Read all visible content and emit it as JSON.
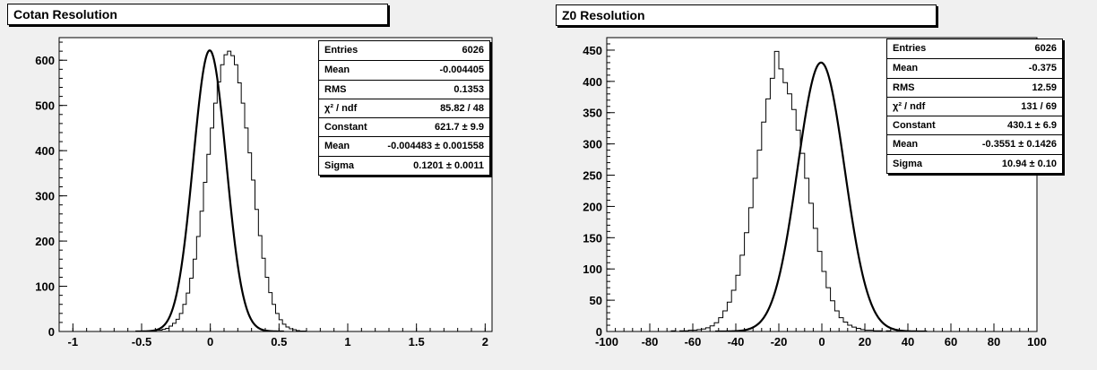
{
  "chart_data": [
    {
      "type": "histogram",
      "title": "Cotan Resolution",
      "xlim": [
        -1.1,
        2.05
      ],
      "ylim": [
        0,
        650
      ],
      "xticks": [
        -1,
        -0.5,
        0,
        0.5,
        1,
        1.5,
        2
      ],
      "xtick_labels": [
        "-1",
        "-0.5",
        "0",
        "0.5",
        "1",
        "1.5",
        "2"
      ],
      "yticks": [
        0,
        100,
        200,
        300,
        400,
        500,
        600
      ],
      "ytick_labels": [
        "0",
        "100",
        "200",
        "300",
        "400",
        "500",
        "600"
      ],
      "grid": false,
      "legend_position": "top-right",
      "histogram": {
        "bin_edges_start": -0.5,
        "bin_width": 0.025,
        "counts": [
          0,
          1,
          1,
          2,
          3,
          3,
          5,
          7,
          12,
          18,
          27,
          40,
          60,
          85,
          118,
          160,
          210,
          266,
          330,
          392,
          450,
          505,
          552,
          590,
          612,
          620,
          610,
          590,
          550,
          505,
          450,
          395,
          335,
          270,
          212,
          162,
          120,
          86,
          60,
          40,
          26,
          16,
          10,
          6,
          4,
          2,
          1,
          1,
          0,
          0
        ]
      },
      "fit": {
        "type": "gaus",
        "constant": 621.7,
        "mean": -0.004483,
        "sigma": 0.1201
      },
      "stats": [
        {
          "label": "Entries",
          "value": "6026"
        },
        {
          "label": "Mean",
          "value": "-0.004405"
        },
        {
          "label": "RMS",
          "value": "0.1353"
        },
        {
          "label": "χ² / ndf",
          "value": "85.82 / 48"
        },
        {
          "label": "Constant",
          "value": "621.7 ± 9.9"
        },
        {
          "label": "Mean",
          "value": "-0.004483 ± 0.001558"
        },
        {
          "label": "Sigma",
          "value": "0.1201 ± 0.0011"
        }
      ]
    },
    {
      "type": "histogram",
      "title": "Z0 Resolution",
      "xlim": [
        -100,
        100
      ],
      "ylim": [
        0,
        470
      ],
      "xticks": [
        -100,
        -80,
        -60,
        -40,
        -20,
        0,
        20,
        40,
        60,
        80,
        100
      ],
      "xtick_labels": [
        "-100",
        "-80",
        "-60",
        "-40",
        "-20",
        "0",
        "20",
        "40",
        "60",
        "80",
        "100"
      ],
      "yticks": [
        0,
        50,
        100,
        150,
        200,
        250,
        300,
        350,
        400,
        450
      ],
      "ytick_labels": [
        "0",
        "50",
        "100",
        "150",
        "200",
        "250",
        "300",
        "350",
        "400",
        "450"
      ],
      "grid": false,
      "legend_position": "top-right",
      "histogram": {
        "bin_edges_start": -100,
        "bin_width": 2,
        "counts": [
          0,
          0,
          0,
          0,
          0,
          0,
          0,
          0,
          0,
          0,
          0,
          0,
          0,
          0,
          0,
          1,
          0,
          1,
          1,
          2,
          2,
          3,
          4,
          6,
          9,
          14,
          22,
          33,
          47,
          66,
          90,
          122,
          158,
          198,
          245,
          290,
          335,
          372,
          405,
          448,
          420,
          398,
          380,
          355,
          322,
          285,
          245,
          205,
          165,
          128,
          96,
          70,
          49,
          33,
          22,
          15,
          10,
          7,
          5,
          3,
          2,
          2,
          1,
          1,
          0,
          1,
          0,
          0,
          1,
          0,
          0,
          0,
          0,
          0,
          0,
          0,
          0,
          0,
          0,
          0,
          0,
          0,
          0,
          0,
          0,
          0,
          0,
          0,
          0,
          0,
          0,
          0,
          0,
          0,
          0,
          0,
          0,
          0,
          0,
          0
        ]
      },
      "fit": {
        "type": "gaus",
        "constant": 430.1,
        "mean": -0.3551,
        "sigma": 10.94
      },
      "stats": [
        {
          "label": "Entries",
          "value": "6026"
        },
        {
          "label": "Mean",
          "value": "-0.375"
        },
        {
          "label": "RMS",
          "value": "12.59"
        },
        {
          "label": "χ² / ndf",
          "value": "131 / 69"
        },
        {
          "label": "Constant",
          "value": "430.1 ± 6.9"
        },
        {
          "label": "Mean",
          "value": "-0.3551 ± 0.1426"
        },
        {
          "label": "Sigma",
          "value": "10.94 ± 0.10"
        }
      ]
    }
  ]
}
